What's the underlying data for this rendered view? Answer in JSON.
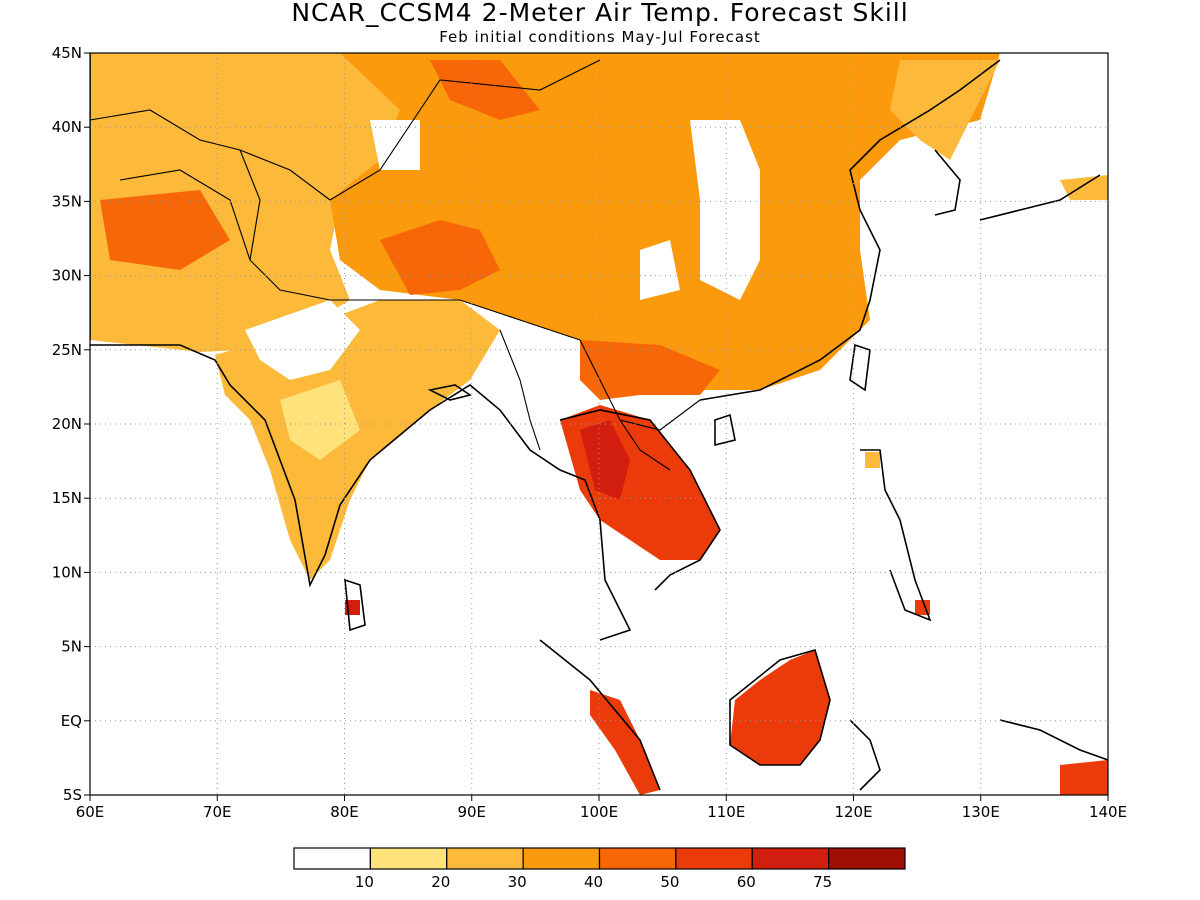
{
  "title": "NCAR_CCSM4 2-Meter Air Temp. Forecast Skill",
  "subtitle": "Feb initial conditions  May-Jul Forecast",
  "map": {
    "lon_range": [
      60,
      140
    ],
    "lat_range": [
      -5,
      45
    ],
    "lon_ticks": [
      60,
      70,
      80,
      90,
      100,
      110,
      120,
      130,
      140
    ],
    "lon_labels": [
      "60E",
      "70E",
      "80E",
      "90E",
      "100E",
      "110E",
      "120E",
      "130E",
      "140E"
    ],
    "lat_ticks": [
      -5,
      0,
      5,
      10,
      15,
      20,
      25,
      30,
      35,
      40,
      45
    ],
    "lat_labels": [
      "5S",
      "EQ",
      "5N",
      "10N",
      "15N",
      "20N",
      "25N",
      "30N",
      "35N",
      "40N",
      "45N"
    ],
    "grid": "dotted"
  },
  "colorbar": {
    "levels": [
      "10",
      "20",
      "30",
      "40",
      "50",
      "60",
      "75"
    ],
    "colors": [
      "#ffffff",
      "#ffe27a",
      "#fcb93a",
      "#fb9a0c",
      "#f76707",
      "#ec3b0a",
      "#d11e0f",
      "#a00f04"
    ]
  },
  "regions": [
    {
      "name": "central-asia",
      "color": "#fcb93a"
    },
    {
      "name": "tibet-china",
      "color": "#fb9a0c"
    },
    {
      "name": "india",
      "color": "#fcb93a"
    },
    {
      "name": "indochina",
      "color": "#ec3b0a"
    },
    {
      "name": "borneo",
      "color": "#ec3b0a"
    },
    {
      "name": "sumatra",
      "color": "#ec3b0a"
    }
  ]
}
